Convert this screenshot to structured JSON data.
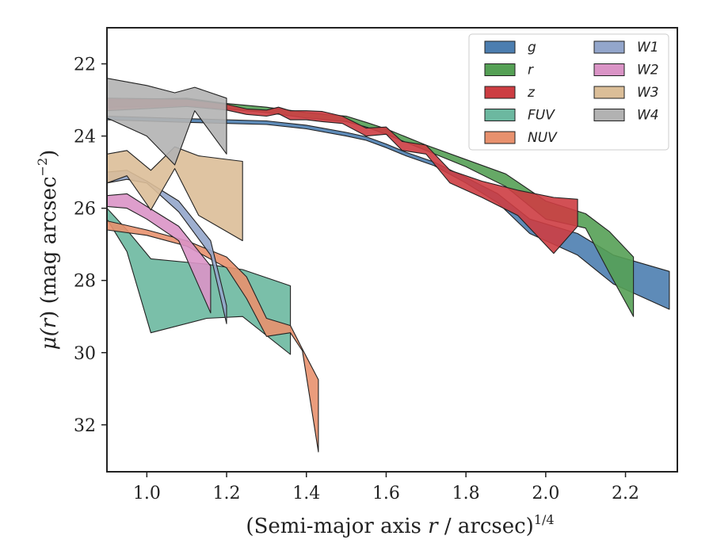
{
  "chart_data": {
    "type": "area",
    "title": "",
    "xlabel": "(Semi-major axis r / arcsec)",
    "xlabel_parts": {
      "pre": "(Semi-major axis ",
      "italic": "r",
      "post": " / arcsec)",
      "sup": "1/4"
    },
    "ylabel": "μ(r) (mag arcsec−2)",
    "ylabel_parts": {
      "mu": "μ(",
      "italic": "r",
      "mid": ") (mag arcsec",
      "sup": "−2",
      "close": ")"
    },
    "xlim": [
      0.9,
      2.33
    ],
    "ylim": [
      33.3,
      21.0
    ],
    "y_inverted": true,
    "xticks": [
      1.0,
      1.2,
      1.4,
      1.6,
      1.8,
      2.0,
      2.2
    ],
    "xtick_labels": [
      "1.0",
      "1.2",
      "1.4",
      "1.6",
      "1.8",
      "2.0",
      "2.2"
    ],
    "yticks": [
      22,
      24,
      26,
      28,
      30,
      32
    ],
    "ytick_labels": [
      "22",
      "24",
      "26",
      "28",
      "30",
      "32"
    ],
    "grid": false,
    "legend_position": "top-right",
    "legend_columns": 2,
    "series": [
      {
        "name": "g",
        "color": "#4c7eb0",
        "x": [
          0.9,
          1.1,
          1.3,
          1.4,
          1.5,
          1.55,
          1.6,
          1.65,
          1.72,
          1.8,
          1.88,
          1.96,
          2.08,
          2.17,
          2.31
        ],
        "y_low": [
          23.55,
          23.62,
          23.68,
          23.8,
          24.0,
          24.12,
          24.32,
          24.55,
          24.82,
          25.3,
          25.85,
          26.7,
          27.3,
          28.1,
          28.8
        ],
        "y_high": [
          23.45,
          23.52,
          23.58,
          23.7,
          23.9,
          24.02,
          24.22,
          24.45,
          24.72,
          25.15,
          25.6,
          26.3,
          26.7,
          27.3,
          27.75
        ]
      },
      {
        "name": "r",
        "color": "#55a055",
        "x": [
          0.9,
          1.1,
          1.2,
          1.3,
          1.4,
          1.5,
          1.55,
          1.6,
          1.7,
          1.8,
          1.9,
          2.0,
          2.1,
          2.16,
          2.22
        ],
        "y_low": [
          23.2,
          23.15,
          23.25,
          23.35,
          23.5,
          23.6,
          23.75,
          23.95,
          24.4,
          24.85,
          25.4,
          26.3,
          26.55,
          27.8,
          29.0
        ],
        "y_high": [
          23.0,
          22.95,
          23.1,
          23.2,
          23.35,
          23.45,
          23.62,
          23.8,
          24.25,
          24.65,
          25.05,
          25.8,
          26.15,
          26.65,
          27.35
        ]
      },
      {
        "name": "z",
        "color": "#cd3d42",
        "x": [
          0.9,
          1.1,
          1.2,
          1.25,
          1.3,
          1.33,
          1.36,
          1.4,
          1.44,
          1.49,
          1.55,
          1.6,
          1.64,
          1.7,
          1.76,
          1.84,
          1.93,
          2.02,
          2.08
        ],
        "y_low": [
          23.3,
          23.18,
          23.28,
          23.4,
          23.45,
          23.38,
          23.55,
          23.55,
          23.6,
          23.65,
          24.0,
          23.95,
          24.4,
          24.5,
          25.3,
          25.7,
          26.2,
          27.25,
          26.5
        ],
        "y_high": [
          22.95,
          22.98,
          23.12,
          23.25,
          23.28,
          23.2,
          23.3,
          23.3,
          23.32,
          23.45,
          23.78,
          23.75,
          24.15,
          24.25,
          24.95,
          25.25,
          25.5,
          25.7,
          25.75
        ]
      },
      {
        "name": "FUV",
        "color": "#6cb8a0",
        "x": [
          0.9,
          0.95,
          1.01,
          1.15,
          1.24,
          1.36
        ],
        "y_low": [
          26.3,
          27.2,
          29.45,
          29.05,
          29.0,
          30.05
        ],
        "y_high": [
          26.0,
          26.6,
          27.4,
          27.55,
          27.7,
          28.15
        ]
      },
      {
        "name": "NUV",
        "color": "#e8916e",
        "x": [
          0.9,
          1.0,
          1.1,
          1.2,
          1.25,
          1.3,
          1.36,
          1.39,
          1.43
        ],
        "y_low": [
          26.6,
          26.75,
          27.05,
          27.65,
          28.5,
          29.55,
          29.45,
          29.95,
          32.75
        ],
        "y_high": [
          26.35,
          26.6,
          26.9,
          27.35,
          27.9,
          29.05,
          29.25,
          29.9,
          30.75
        ]
      },
      {
        "name": "W1",
        "color": "#93a6cb",
        "x": [
          0.9,
          0.95,
          1.0,
          1.08,
          1.16,
          1.2
        ],
        "y_low": [
          25.3,
          25.2,
          25.3,
          26.1,
          27.3,
          29.2
        ],
        "y_high": [
          25.0,
          24.95,
          25.25,
          25.8,
          26.9,
          28.7
        ]
      },
      {
        "name": "W2",
        "color": "#da94c6",
        "x": [
          0.9,
          0.95,
          1.0,
          1.08,
          1.16
        ],
        "y_low": [
          25.95,
          26.0,
          26.3,
          26.9,
          28.9
        ],
        "y_high": [
          25.65,
          25.6,
          25.95,
          26.5,
          27.6
        ]
      },
      {
        "name": "W3",
        "color": "#dbbe98",
        "x": [
          0.9,
          0.95,
          1.01,
          1.07,
          1.13,
          1.24
        ],
        "y_low": [
          25.3,
          25.1,
          26.05,
          24.9,
          26.2,
          26.9
        ],
        "y_high": [
          24.5,
          24.4,
          24.95,
          24.3,
          24.55,
          24.7
        ]
      },
      {
        "name": "W4",
        "color": "#b2b2b2",
        "x": [
          0.9,
          1.0,
          1.07,
          1.12,
          1.2
        ],
        "y_low": [
          23.5,
          24.0,
          24.8,
          23.3,
          24.5
        ],
        "y_high": [
          22.4,
          22.6,
          22.8,
          22.65,
          22.95
        ]
      }
    ]
  }
}
